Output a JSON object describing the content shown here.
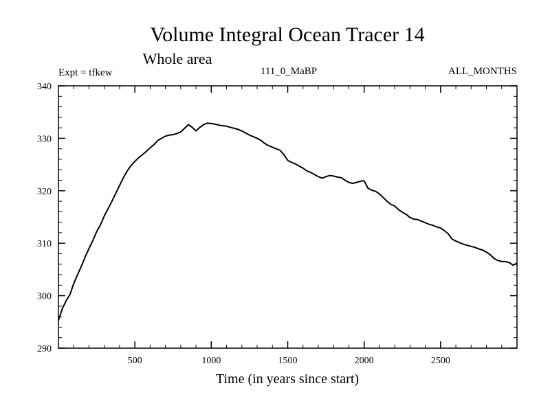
{
  "chart_data": {
    "type": "line",
    "title": "Volume Integral Ocean Tracer 14",
    "subtitle": "Whole area",
    "left_label": "Expt = tfkew",
    "center_label": "111_0_MaBP",
    "right_label": "ALL_MONTHS",
    "xlabel": "Time (in years since start)",
    "ylabel": "",
    "xlim": [
      0,
      3000
    ],
    "ylim": [
      290,
      340
    ],
    "x_ticks": [
      500,
      1000,
      1500,
      2000,
      2500
    ],
    "y_ticks": [
      290,
      300,
      310,
      320,
      330,
      340
    ],
    "x_minor_step": 100,
    "y_minor_step": 2,
    "grid": false,
    "series": [
      {
        "color": "#000000",
        "x": [
          0,
          25,
          50,
          75,
          100,
          125,
          150,
          175,
          200,
          225,
          250,
          275,
          300,
          325,
          350,
          375,
          400,
          425,
          450,
          475,
          500,
          525,
          550,
          575,
          600,
          625,
          650,
          675,
          700,
          725,
          750,
          775,
          800,
          825,
          850,
          875,
          900,
          925,
          950,
          975,
          1000,
          1025,
          1050,
          1075,
          1100,
          1125,
          1150,
          1175,
          1200,
          1225,
          1250,
          1275,
          1300,
          1325,
          1350,
          1375,
          1400,
          1425,
          1450,
          1475,
          1500,
          1525,
          1550,
          1575,
          1600,
          1625,
          1650,
          1675,
          1700,
          1725,
          1750,
          1775,
          1800,
          1825,
          1850,
          1875,
          1900,
          1925,
          1950,
          1975,
          2000,
          2025,
          2050,
          2075,
          2100,
          2125,
          2150,
          2175,
          2200,
          2225,
          2250,
          2275,
          2300,
          2325,
          2350,
          2375,
          2400,
          2425,
          2450,
          2475,
          2500,
          2525,
          2550,
          2575,
          2600,
          2625,
          2650,
          2675,
          2700,
          2725,
          2750,
          2775,
          2800,
          2825,
          2850,
          2875,
          2900,
          2925,
          2950,
          2975,
          3000
        ],
        "values": [
          295.3,
          297.5,
          299.0,
          300.2,
          302.3,
          304.0,
          305.6,
          307.4,
          309.0,
          310.5,
          312.2,
          313.5,
          315.2,
          316.6,
          318.0,
          319.5,
          321.0,
          322.5,
          323.8,
          324.8,
          325.6,
          326.3,
          326.9,
          327.5,
          328.2,
          328.8,
          329.6,
          330.0,
          330.4,
          330.6,
          330.7,
          330.9,
          331.2,
          331.9,
          332.6,
          332.1,
          331.4,
          332.1,
          332.6,
          332.9,
          332.8,
          332.7,
          332.5,
          332.4,
          332.3,
          332.1,
          331.9,
          331.7,
          331.4,
          331.0,
          330.6,
          330.3,
          330.0,
          329.6,
          329.0,
          328.6,
          328.3,
          328.0,
          327.7,
          326.9,
          325.8,
          325.4,
          325.1,
          324.7,
          324.3,
          323.8,
          323.5,
          323.1,
          322.7,
          322.4,
          322.7,
          322.9,
          322.8,
          322.6,
          322.5,
          322.0,
          321.6,
          321.4,
          321.6,
          321.8,
          321.9,
          320.5,
          320.1,
          319.9,
          319.4,
          318.7,
          318.0,
          317.4,
          317.1,
          316.4,
          315.9,
          315.5,
          314.9,
          314.6,
          314.5,
          314.2,
          313.9,
          313.6,
          313.4,
          313.1,
          312.9,
          312.4,
          311.8,
          310.8,
          310.4,
          310.1,
          309.8,
          309.6,
          309.4,
          309.2,
          308.9,
          308.7,
          308.3,
          307.8,
          307.1,
          306.7,
          306.5,
          306.5,
          306.3,
          305.8,
          306.2
        ]
      }
    ]
  }
}
